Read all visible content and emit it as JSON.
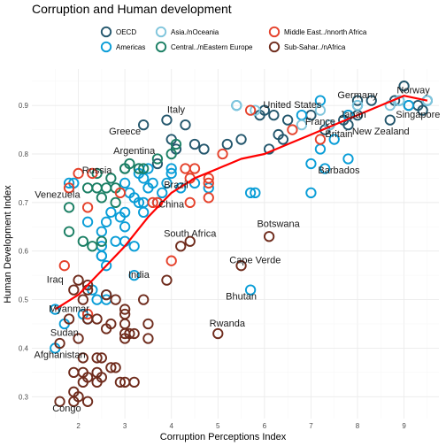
{
  "chart_data": {
    "type": "scatter",
    "title": "Corruption and Human development",
    "xlabel": "Corruption Perceptions Index",
    "ylabel": "Human Development Index",
    "xlim": [
      1.0,
      9.75
    ],
    "ylim": [
      0.255,
      0.975
    ],
    "x_ticks": [
      2,
      3,
      4,
      5,
      6,
      7,
      8,
      9
    ],
    "y_ticks": [
      0.3,
      0.4,
      0.5,
      0.6,
      0.7,
      0.8,
      0.9
    ],
    "x_tick_labels": [
      "2",
      "3",
      "4",
      "5",
      "6",
      "7",
      "8",
      "9"
    ],
    "y_tick_labels": [
      "0.3",
      "0.4",
      "0.5",
      "0.6",
      "0.7",
      "0.8",
      "0.9"
    ],
    "grid": true,
    "legend_position": "top",
    "series": [
      {
        "key": "oecd",
        "name": "OECD",
        "color": "#24576D",
        "points": [
          [
            8.0,
            0.91
          ],
          [
            8.3,
            0.91
          ],
          [
            9.0,
            0.94
          ],
          [
            8.8,
            0.91
          ],
          [
            9.3,
            0.9
          ],
          [
            9.1,
            0.9
          ],
          [
            9.4,
            0.89
          ],
          [
            7.8,
            0.88
          ],
          [
            6.0,
            0.89
          ],
          [
            5.9,
            0.88
          ],
          [
            6.2,
            0.88
          ],
          [
            7.0,
            0.88
          ],
          [
            8.0,
            0.88
          ],
          [
            6.5,
            0.87
          ],
          [
            7.7,
            0.87
          ],
          [
            8.7,
            0.87
          ],
          [
            7.4,
            0.86
          ],
          [
            7.3,
            0.85
          ],
          [
            6.3,
            0.84
          ],
          [
            6.4,
            0.83
          ],
          [
            5.5,
            0.83
          ],
          [
            5.2,
            0.82
          ],
          [
            4.5,
            0.82
          ],
          [
            4.7,
            0.81
          ],
          [
            6.1,
            0.81
          ],
          [
            4.1,
            0.81
          ],
          [
            4.0,
            0.83
          ],
          [
            3.4,
            0.86
          ],
          [
            3.9,
            0.87
          ],
          [
            4.3,
            0.86
          ],
          [
            3.7,
            0.78
          ],
          [
            3.0,
            0.77
          ],
          [
            3.3,
            0.77
          ],
          [
            7.8,
            0.86
          ],
          [
            9.5,
            0.91
          ]
        ]
      },
      {
        "key": "americas",
        "name": "Americas",
        "color": "#099DD7",
        "points": [
          [
            9.5,
            0.91
          ],
          [
            8.9,
            0.91
          ],
          [
            7.2,
            0.91
          ],
          [
            8.0,
            0.9
          ],
          [
            5.4,
            0.9
          ],
          [
            6.8,
            0.88
          ],
          [
            7.5,
            0.83
          ],
          [
            7.2,
            0.81
          ],
          [
            7.0,
            0.78
          ],
          [
            7.3,
            0.77
          ],
          [
            7.8,
            0.79
          ],
          [
            5.7,
            0.72
          ],
          [
            7.0,
            0.72
          ],
          [
            4.0,
            0.77
          ],
          [
            4.5,
            0.74
          ],
          [
            4.2,
            0.73
          ],
          [
            4.8,
            0.73
          ],
          [
            3.8,
            0.72
          ],
          [
            3.7,
            0.7
          ],
          [
            3.4,
            0.7
          ],
          [
            3.2,
            0.71
          ],
          [
            3.4,
            0.68
          ],
          [
            3.0,
            0.68
          ],
          [
            2.7,
            0.68
          ],
          [
            2.9,
            0.67
          ],
          [
            2.6,
            0.66
          ],
          [
            2.2,
            0.66
          ],
          [
            2.5,
            0.64
          ],
          [
            3.0,
            0.62
          ],
          [
            2.5,
            0.61
          ],
          [
            3.2,
            0.61
          ],
          [
            2.5,
            0.59
          ],
          [
            2.6,
            0.57
          ],
          [
            3.2,
            0.55
          ],
          [
            2.6,
            0.51
          ],
          [
            2.6,
            0.5
          ],
          [
            2.4,
            0.5
          ],
          [
            2.2,
            0.46
          ],
          [
            1.7,
            0.45
          ],
          [
            1.5,
            0.48
          ],
          [
            3.4,
            0.75
          ],
          [
            3.0,
            0.74
          ],
          [
            3.6,
            0.74
          ],
          [
            3.9,
            0.74
          ],
          [
            3.5,
            0.73
          ],
          [
            3.1,
            0.72
          ],
          [
            3.3,
            0.7
          ],
          [
            3.0,
            0.65
          ],
          [
            2.5,
            0.59
          ],
          [
            2.8,
            0.62
          ],
          [
            2.3,
            0.52
          ],
          [
            1.5,
            0.4
          ],
          [
            1.9,
            0.74
          ],
          [
            3.5,
            0.77
          ],
          [
            3.3,
            0.76
          ],
          [
            4.0,
            0.76
          ],
          [
            5.7,
            0.52
          ],
          [
            5.8,
            0.72
          ],
          [
            7.8,
            0.88
          ],
          [
            9.1,
            0.9
          ],
          [
            2.1,
            0.47
          ],
          [
            1.8,
            0.74
          ]
        ]
      },
      {
        "key": "asia",
        "name": "Asia./nOceania",
        "color": "#80C5DC",
        "points": [
          [
            9.5,
            0.91
          ],
          [
            8.9,
            0.91
          ],
          [
            8.7,
            0.9
          ],
          [
            7.2,
            0.89
          ],
          [
            8.0,
            0.9
          ],
          [
            6.8,
            0.86
          ],
          [
            7.4,
            0.86
          ],
          [
            5.8,
            0.89
          ],
          [
            5.4,
            0.9
          ]
        ]
      },
      {
        "key": "central",
        "name": "Central../nEastern Europe",
        "color": "#1B7F64",
        "points": [
          [
            1.8,
            0.69
          ],
          [
            1.8,
            0.64
          ],
          [
            2.1,
            0.62
          ],
          [
            2.3,
            0.61
          ],
          [
            2.4,
            0.73
          ],
          [
            2.5,
            0.71
          ],
          [
            2.6,
            0.73
          ],
          [
            2.8,
            0.73
          ],
          [
            3.0,
            0.77
          ],
          [
            3.4,
            0.77
          ],
          [
            3.7,
            0.79
          ],
          [
            4.0,
            0.8
          ],
          [
            4.1,
            0.82
          ],
          [
            3.1,
            0.78
          ],
          [
            2.4,
            0.76
          ],
          [
            2.7,
            0.75
          ],
          [
            2.2,
            0.73
          ],
          [
            3.3,
            0.77
          ],
          [
            2.8,
            0.7
          ],
          [
            2.5,
            0.62
          ]
        ]
      },
      {
        "key": "mideast",
        "name": "Middle East../nnorth Africa",
        "color": "#E5412B",
        "points": [
          [
            1.7,
            0.57
          ],
          [
            1.8,
            0.73
          ],
          [
            2.0,
            0.76
          ],
          [
            2.3,
            0.76
          ],
          [
            2.2,
            0.69
          ],
          [
            2.9,
            0.72
          ],
          [
            3.7,
            0.7
          ],
          [
            3.6,
            0.7
          ],
          [
            4.3,
            0.77
          ],
          [
            4.5,
            0.77
          ],
          [
            4.8,
            0.71
          ],
          [
            4.4,
            0.7
          ],
          [
            4.0,
            0.58
          ],
          [
            4.4,
            0.75
          ],
          [
            4.8,
            0.75
          ],
          [
            5.1,
            0.8
          ],
          [
            5.7,
            0.89
          ],
          [
            6.6,
            0.85
          ],
          [
            7.2,
            0.83
          ],
          [
            4.8,
            0.74
          ],
          [
            2.2,
            0.47
          ]
        ]
      },
      {
        "key": "africa",
        "name": "Sub-Sahar../nAfrica",
        "color": "#6F2C1D",
        "points": [
          [
            1.6,
            0.29
          ],
          [
            1.9,
            0.35
          ],
          [
            2.0,
            0.42
          ],
          [
            2.1,
            0.38
          ],
          [
            2.2,
            0.29
          ],
          [
            1.9,
            0.29
          ],
          [
            1.9,
            0.31
          ],
          [
            2.0,
            0.3
          ],
          [
            2.1,
            0.35
          ],
          [
            2.1,
            0.33
          ],
          [
            2.2,
            0.34
          ],
          [
            2.4,
            0.35
          ],
          [
            2.4,
            0.33
          ],
          [
            2.5,
            0.34
          ],
          [
            2.4,
            0.38
          ],
          [
            2.5,
            0.38
          ],
          [
            2.6,
            0.44
          ],
          [
            2.7,
            0.36
          ],
          [
            2.8,
            0.36
          ],
          [
            2.9,
            0.33
          ],
          [
            3.0,
            0.33
          ],
          [
            3.2,
            0.33
          ],
          [
            3.0,
            0.42
          ],
          [
            3.0,
            0.43
          ],
          [
            3.0,
            0.45
          ],
          [
            3.0,
            0.47
          ],
          [
            3.1,
            0.43
          ],
          [
            3.2,
            0.43
          ],
          [
            3.5,
            0.42
          ],
          [
            3.5,
            0.45
          ],
          [
            3.4,
            0.5
          ],
          [
            3.0,
            0.48
          ],
          [
            2.8,
            0.5
          ],
          [
            2.6,
            0.51
          ],
          [
            2.2,
            0.52
          ],
          [
            2.2,
            0.53
          ],
          [
            2.1,
            0.5
          ],
          [
            1.9,
            0.52
          ],
          [
            2.0,
            0.54
          ],
          [
            2.4,
            0.46
          ],
          [
            2.2,
            0.46
          ],
          [
            3.9,
            0.54
          ],
          [
            4.4,
            0.62
          ],
          [
            4.2,
            0.61
          ],
          [
            5.0,
            0.43
          ],
          [
            6.1,
            0.63
          ],
          [
            5.5,
            0.57
          ],
          [
            2.7,
            0.45
          ],
          [
            1.6,
            0.41
          ],
          [
            1.8,
            0.46
          ]
        ]
      }
    ],
    "trend": [
      [
        1.5,
        0.48
      ],
      [
        2.0,
        0.51
      ],
      [
        2.5,
        0.56
      ],
      [
        3.0,
        0.61
      ],
      [
        3.5,
        0.67
      ],
      [
        4.0,
        0.72
      ],
      [
        4.5,
        0.75
      ],
      [
        5.0,
        0.77
      ],
      [
        5.5,
        0.79
      ],
      [
        6.0,
        0.8
      ],
      [
        6.5,
        0.82
      ],
      [
        7.0,
        0.84
      ],
      [
        7.5,
        0.86
      ],
      [
        8.0,
        0.88
      ],
      [
        8.5,
        0.9
      ],
      [
        9.0,
        0.92
      ],
      [
        9.5,
        0.91
      ]
    ],
    "trend_color": "#FF0000",
    "annotations": [
      {
        "text": "Norway",
        "x": 9.2,
        "y": 0.925
      },
      {
        "text": "Germany",
        "x": 8.0,
        "y": 0.915
      },
      {
        "text": "United States",
        "x": 6.6,
        "y": 0.895
      },
      {
        "text": "Japan",
        "x": 7.9,
        "y": 0.875
      },
      {
        "text": "Singapore",
        "x": 9.3,
        "y": 0.875
      },
      {
        "text": "Italy",
        "x": 4.1,
        "y": 0.885
      },
      {
        "text": "France",
        "x": 7.2,
        "y": 0.86
      },
      {
        "text": "New Zealand",
        "x": 8.5,
        "y": 0.84
      },
      {
        "text": "Greece",
        "x": 3.0,
        "y": 0.84
      },
      {
        "text": "Britain",
        "x": 7.6,
        "y": 0.835
      },
      {
        "text": "Argentina",
        "x": 3.2,
        "y": 0.8
      },
      {
        "text": "Barbados",
        "x": 7.6,
        "y": 0.76
      },
      {
        "text": "Russia",
        "x": 2.4,
        "y": 0.76
      },
      {
        "text": "Brazil",
        "x": 4.1,
        "y": 0.73
      },
      {
        "text": "Venezuela",
        "x": 1.55,
        "y": 0.71
      },
      {
        "text": "China",
        "x": 4.0,
        "y": 0.69
      },
      {
        "text": "Botswana",
        "x": 6.3,
        "y": 0.65
      },
      {
        "text": "South Africa",
        "x": 4.4,
        "y": 0.63
      },
      {
        "text": "Cape Verde",
        "x": 5.8,
        "y": 0.575
      },
      {
        "text": "India",
        "x": 3.3,
        "y": 0.545
      },
      {
        "text": "Iraq",
        "x": 1.5,
        "y": 0.535
      },
      {
        "text": "Bhutan",
        "x": 5.5,
        "y": 0.5
      },
      {
        "text": "Myanmar",
        "x": 1.8,
        "y": 0.475
      },
      {
        "text": "Rwanda",
        "x": 5.2,
        "y": 0.445
      },
      {
        "text": "Sudan",
        "x": 1.7,
        "y": 0.425
      },
      {
        "text": "Afghanistan",
        "x": 1.6,
        "y": 0.38
      },
      {
        "text": "Congo",
        "x": 1.75,
        "y": 0.27
      }
    ]
  }
}
